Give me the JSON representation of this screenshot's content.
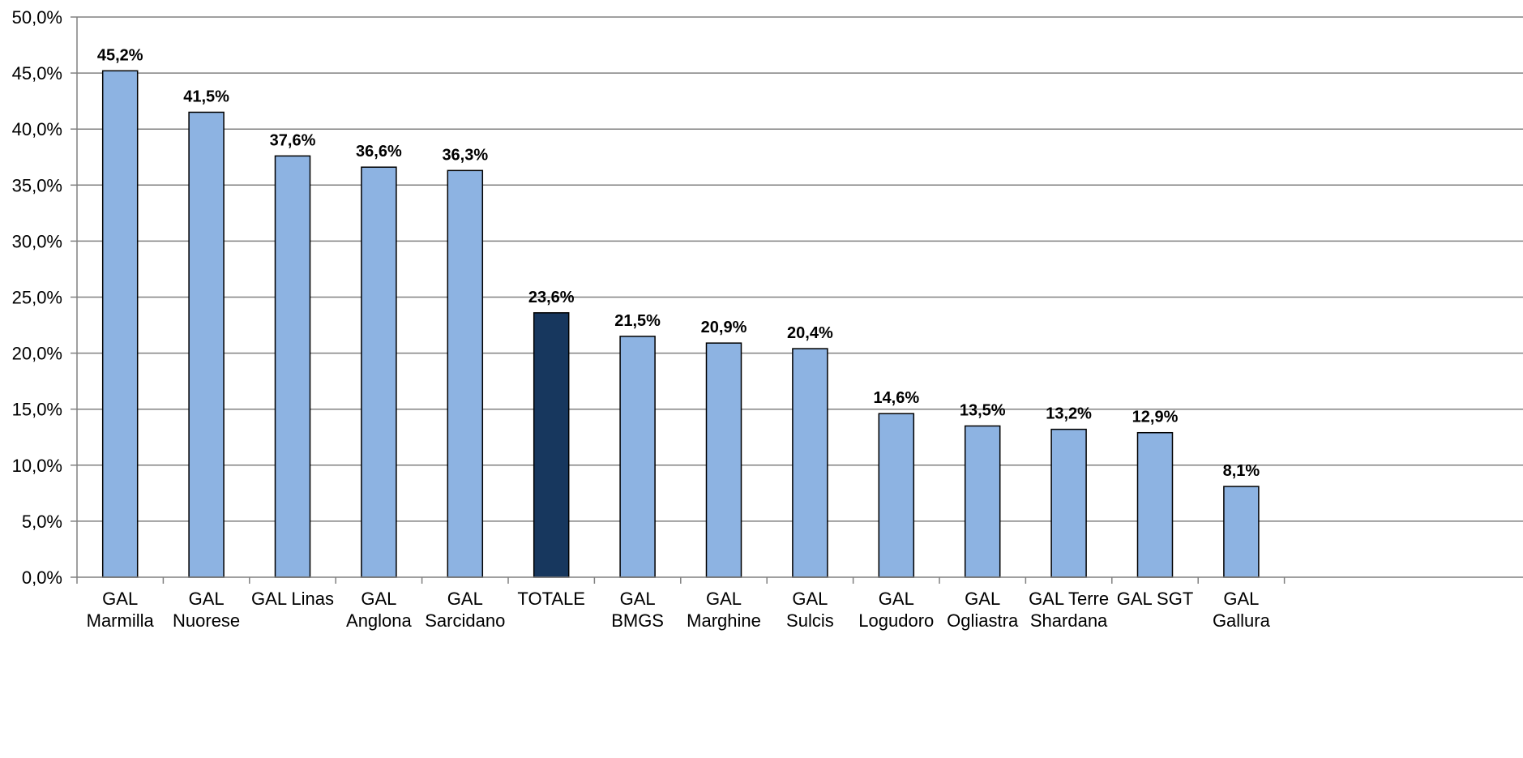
{
  "chart_data": {
    "type": "bar",
    "title": "",
    "xlabel": "",
    "ylabel": "",
    "ylim": [
      0,
      50
    ],
    "ytick_step": 5,
    "ytick_labels": [
      "0,0%",
      "5,0%",
      "10,0%",
      "15,0%",
      "20,0%",
      "25,0%",
      "30,0%",
      "35,0%",
      "40,0%",
      "45,0%",
      "50,0%"
    ],
    "grid": "horizontal",
    "legend": "none",
    "categories": [
      [
        "GAL",
        "Marmilla"
      ],
      [
        "GAL",
        "Nuorese"
      ],
      [
        "GAL Linas"
      ],
      [
        "GAL",
        "Anglona"
      ],
      [
        "GAL",
        "Sarcidano"
      ],
      [
        "TOTALE"
      ],
      [
        "GAL",
        "BMGS"
      ],
      [
        "GAL",
        "Marghine"
      ],
      [
        "GAL",
        "Sulcis"
      ],
      [
        "GAL",
        "Logudoro"
      ],
      [
        "GAL",
        "Ogliastra"
      ],
      [
        "GAL Terre",
        "Shardana"
      ],
      [
        "GAL SGT"
      ],
      [
        "GAL",
        "Gallura"
      ]
    ],
    "values": [
      45.2,
      41.5,
      37.6,
      36.6,
      36.3,
      23.6,
      21.5,
      20.9,
      20.4,
      14.6,
      13.5,
      13.2,
      12.9,
      8.1
    ],
    "data_labels": [
      "45,2%",
      "41,5%",
      "37,6%",
      "36,6%",
      "36,3%",
      "23,6%",
      "21,5%",
      "20,9%",
      "20,4%",
      "14,6%",
      "13,5%",
      "13,2%",
      "12,9%",
      "8,1%"
    ],
    "highlight_index": 5,
    "colors": {
      "bar": "#8DB3E2",
      "highlight_bar": "#17375E",
      "bar_outline": "#000000",
      "grid": "#808080",
      "axis": "#808080"
    }
  }
}
